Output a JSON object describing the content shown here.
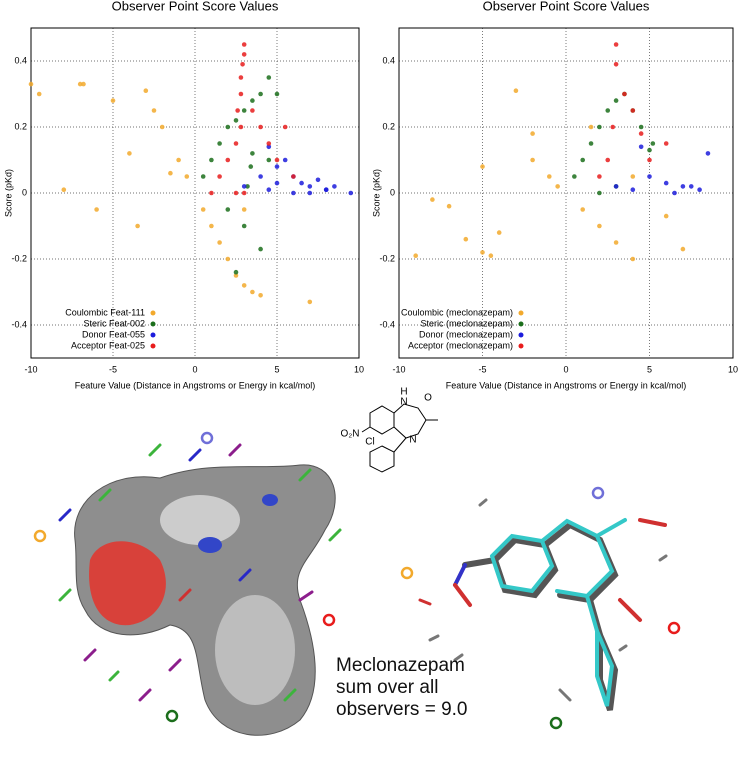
{
  "chart_data": [
    {
      "type": "scatter",
      "title": "Observer Point Score Values",
      "x_label": "Feature Value (Distance in Angstroms or Energy in kcal/mol)",
      "y_label": "Score (pKd)",
      "xlim": [
        -10,
        10
      ],
      "xticks": [
        -10,
        -5,
        0,
        5,
        10
      ],
      "ylim": [
        -0.5,
        0.5
      ],
      "yticks": [
        -0.4,
        -0.2,
        0,
        0.2,
        0.4
      ],
      "grid": true,
      "legend": "lower left",
      "series": [
        {
          "name": "Coulombic Feat-111",
          "color": "#f2a92c",
          "x": [
            -10,
            -9.5,
            -7,
            -6.8,
            -5,
            -3,
            -2.5,
            -2,
            -1,
            -0.5,
            0.5,
            1,
            1.5,
            2,
            2.5,
            3,
            3.5,
            4,
            -4,
            -6,
            3,
            7,
            -8,
            -3.5,
            -1.5
          ],
          "values": [
            0.33,
            0.3,
            0.33,
            0.33,
            0.28,
            0.31,
            0.25,
            0.2,
            0.1,
            0.05,
            -0.05,
            -0.1,
            -0.15,
            -0.2,
            -0.25,
            -0.28,
            -0.3,
            -0.31,
            0.12,
            -0.05,
            -0.05,
            -0.33,
            0.01,
            -0.1,
            0.06
          ]
        },
        {
          "name": "Steric Feat-002",
          "color": "#1b6e1b",
          "x": [
            0.5,
            1,
            1.5,
            2,
            2.5,
            3,
            3.5,
            4,
            4.5,
            5,
            2,
            3,
            4,
            2.5,
            3.5,
            4.5,
            3.2,
            3.4
          ],
          "values": [
            0.05,
            0.1,
            0.15,
            0.2,
            0.22,
            0.25,
            0.28,
            0.3,
            0.35,
            0.3,
            -0.05,
            -0.1,
            -0.17,
            -0.24,
            0.12,
            0.1,
            0.02,
            0.08
          ]
        },
        {
          "name": "Donor Feat-055",
          "color": "#1c1cdc",
          "x": [
            3,
            4,
            4.5,
            5,
            5.5,
            6,
            6.5,
            7,
            7.5,
            8,
            8.5,
            9.5,
            4.5,
            5,
            6,
            7,
            8
          ],
          "values": [
            0.02,
            0.05,
            0.14,
            0.08,
            0.1,
            0.05,
            0.03,
            0.02,
            0.04,
            0.01,
            0.02,
            0.0,
            0.01,
            0.03,
            0.0,
            0.0,
            0.01
          ]
        },
        {
          "name": "Acceptor Feat-025",
          "color": "#e81c1c",
          "x": [
            1,
            1.5,
            2,
            2.5,
            2.8,
            2.8,
            2.9,
            3,
            3,
            3.5,
            4,
            4.5,
            5,
            5.5,
            6,
            2.5,
            3,
            2.8,
            2.6
          ],
          "values": [
            0.0,
            0.05,
            0.1,
            0.15,
            0.2,
            0.3,
            0.39,
            0.45,
            0.42,
            0.25,
            0.2,
            0.15,
            0.1,
            0.2,
            0.05,
            0.0,
            0.0,
            0.35,
            0.25
          ]
        }
      ]
    },
    {
      "type": "scatter",
      "title": "Observer Point Score Values",
      "x_label": "Feature Value (Distance in Angstroms or Energy in kcal/mol)",
      "y_label": "Score (pKd)",
      "xlim": [
        -10,
        10
      ],
      "xticks": [
        -10,
        -5,
        0,
        5,
        10
      ],
      "ylim": [
        -0.5,
        0.5
      ],
      "yticks": [
        -0.4,
        -0.2,
        0,
        0.2,
        0.4
      ],
      "grid": true,
      "legend": "lower left",
      "series": [
        {
          "name": "Coulombic (meclonazepam)",
          "color": "#f2a92c",
          "x": [
            -3,
            -9,
            -7,
            -6,
            -5,
            -4.5,
            -4,
            -2,
            -1,
            -0.5,
            1,
            2,
            3,
            4,
            4,
            -2,
            6,
            7,
            -8,
            -5,
            1.5
          ],
          "values": [
            0.31,
            -0.19,
            -0.04,
            -0.14,
            -0.18,
            -0.19,
            -0.12,
            0.1,
            0.05,
            0.02,
            -0.05,
            -0.1,
            -0.15,
            0.05,
            -0.2,
            0.18,
            -0.07,
            -0.17,
            -0.02,
            0.08,
            0.2
          ]
        },
        {
          "name": "Steric (meclonazepam)",
          "color": "#1b6e1b",
          "x": [
            0.5,
            1,
            1.5,
            2,
            2.5,
            3,
            3.5,
            4,
            4.5,
            5,
            5.2,
            3,
            2
          ],
          "values": [
            0.05,
            0.1,
            0.15,
            0.2,
            0.25,
            0.28,
            0.3,
            0.25,
            0.2,
            0.13,
            0.15,
            0.02,
            0.0
          ]
        },
        {
          "name": "Donor (meclonazepam)",
          "color": "#1c1cdc",
          "x": [
            4.5,
            5,
            6,
            7,
            8,
            8.5,
            3,
            4,
            6.5,
            7.5
          ],
          "values": [
            0.14,
            0.05,
            0.03,
            0.02,
            0.01,
            0.12,
            0.02,
            0.01,
            0.0,
            0.02
          ]
        },
        {
          "name": "Acceptor (meclonazepam)",
          "color": "#e81c1c",
          "x": [
            2,
            2.5,
            3,
            3,
            3.5,
            4,
            4.5,
            5,
            6,
            2.8
          ],
          "values": [
            0.05,
            0.1,
            0.39,
            0.45,
            0.3,
            0.25,
            0.18,
            0.1,
            0.15,
            0.2
          ]
        }
      ]
    }
  ],
  "annotation": [
    "Meclonazepam",
    "sum over all",
    "observers = 9.0"
  ],
  "structure_labels": [
    "H",
    "N",
    "O",
    "N",
    "O₂N",
    "Cl"
  ]
}
